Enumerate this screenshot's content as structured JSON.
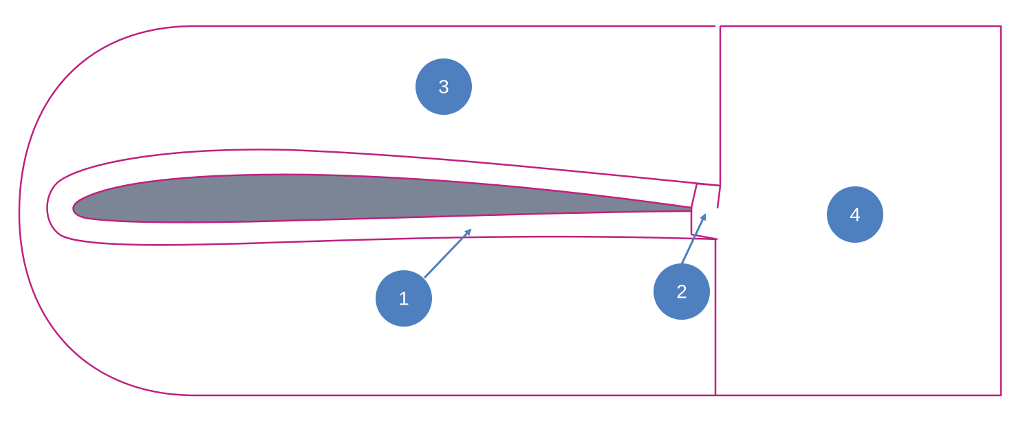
{
  "colors": {
    "boundary": "#c0207f",
    "airfoil_fill": "#7b8596",
    "badge": "#4e7fbe",
    "arrow": "#4e7fbe",
    "background": "#ffffff"
  },
  "labels": [
    {
      "id": "1",
      "text": "1"
    },
    {
      "id": "2",
      "text": "2"
    },
    {
      "id": "3",
      "text": "3"
    },
    {
      "id": "4",
      "text": "4"
    }
  ]
}
